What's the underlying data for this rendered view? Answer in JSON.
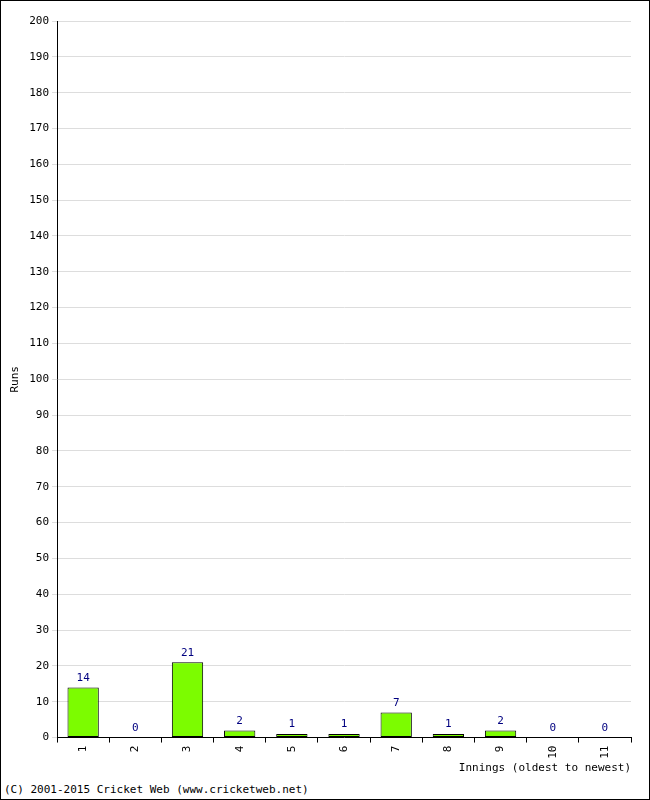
{
  "chart_data": {
    "type": "bar",
    "x_label": "Innings (oldest to newest)",
    "y_label": "Runs",
    "categories": [
      "1",
      "2",
      "3",
      "4",
      "5",
      "6",
      "7",
      "8",
      "9",
      "10",
      "11"
    ],
    "values": [
      14,
      0,
      21,
      2,
      1,
      1,
      7,
      1,
      2,
      0,
      0
    ],
    "color": "#7cfc00",
    "ylim": [
      0,
      200
    ],
    "yticks": [
      0,
      10,
      20,
      30,
      40,
      50,
      60,
      70,
      80,
      90,
      100,
      110,
      120,
      130,
      140,
      150,
      160,
      170,
      180,
      190,
      200
    ],
    "grid": true,
    "data_labels": true,
    "legend": false,
    "annotations": [
      "(C) 2001-2015 Cricket Web (www.cricketweb.net)"
    ]
  }
}
